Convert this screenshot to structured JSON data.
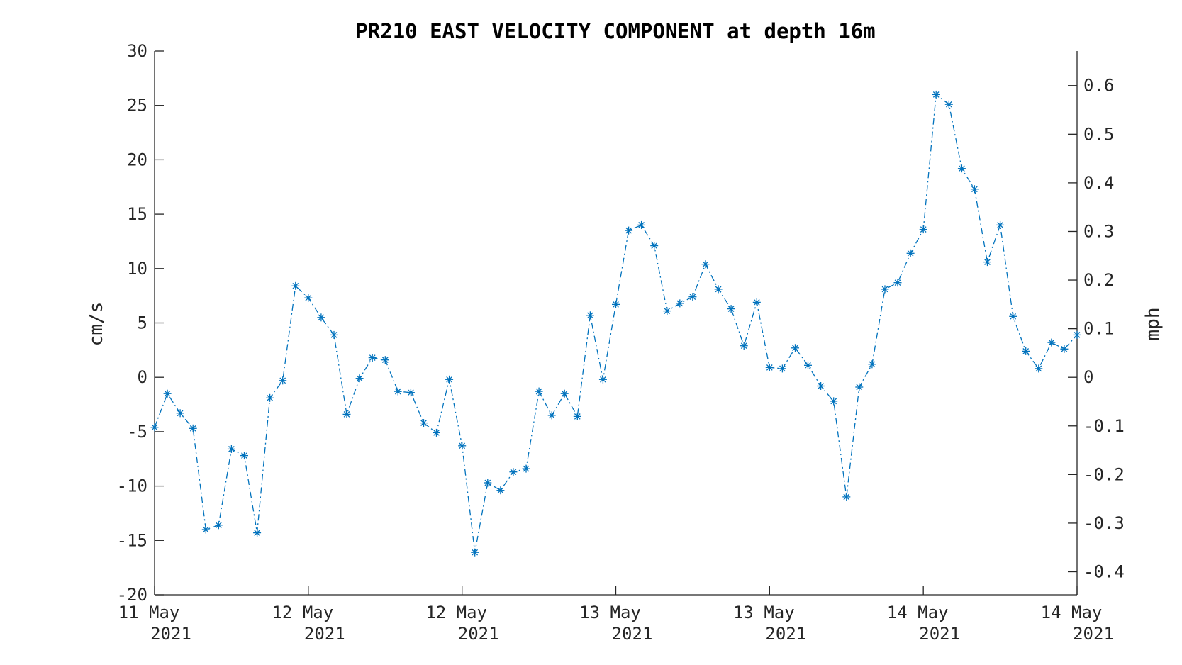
{
  "chart_data": {
    "type": "line",
    "title": "PR210 EAST VELOCITY COMPONENT at depth 16m",
    "ylabel": "cm/s",
    "y2label": "mph",
    "ylim": [
      -20,
      30
    ],
    "yticks": [
      -20,
      -15,
      -10,
      -5,
      0,
      5,
      10,
      15,
      20,
      25,
      30
    ],
    "ytick_labels": [
      "-20",
      "-15",
      "-10",
      "-5",
      "0",
      "5",
      "10",
      "15",
      "20",
      "25",
      "30"
    ],
    "y2ticks": [
      -0.4,
      -0.3,
      -0.2,
      -0.1,
      0,
      0.1,
      0.2,
      0.3,
      0.4,
      0.5,
      0.6
    ],
    "y2tick_labels": [
      "-0.4",
      "-0.3",
      "-0.2",
      "-0.1",
      "0",
      "0.1",
      "0.2",
      "0.3",
      "0.4",
      "0.5",
      "0.6"
    ],
    "xticks": [
      {
        "line1": "11 May",
        "line2": "2021"
      },
      {
        "line1": "12 May",
        "line2": "2021"
      },
      {
        "line1": "12 May",
        "line2": "2021"
      },
      {
        "line1": "13 May",
        "line2": "2021"
      },
      {
        "line1": "13 May",
        "line2": "2021"
      },
      {
        "line1": "14 May",
        "line2": "2021"
      },
      {
        "line1": "14 May",
        "line2": "2021"
      }
    ],
    "line_style": "dash-dot",
    "marker": "asterisk",
    "color": "#0072BD",
    "grid": false,
    "series": [
      {
        "values": [
          -4.6,
          -1.5,
          -3.3,
          -4.7,
          -14.0,
          -13.6,
          -6.6,
          -7.2,
          -14.3,
          -1.9,
          -0.3,
          8.4,
          7.3,
          5.5,
          3.9,
          -3.4,
          -0.1,
          1.8,
          1.6,
          -1.3,
          -1.4,
          -4.2,
          -5.1,
          -0.2,
          -6.3,
          -16.1,
          -9.7,
          -10.4,
          -8.7,
          -8.4,
          -1.3,
          -3.5,
          -1.5,
          -3.6,
          5.7,
          -0.2,
          6.7,
          13.5,
          14.0,
          12.1,
          6.1,
          6.8,
          7.4,
          10.4,
          8.1,
          6.3,
          2.9,
          6.9,
          0.9,
          0.8,
          2.7,
          1.1,
          -0.8,
          -2.2,
          -11.0,
          -0.9,
          1.2,
          8.1,
          8.7,
          11.4,
          13.6,
          26.0,
          25.1,
          19.2,
          17.3,
          10.6,
          14.0,
          5.6,
          2.4,
          0.8,
          3.2,
          2.6,
          3.9
        ]
      }
    ]
  }
}
